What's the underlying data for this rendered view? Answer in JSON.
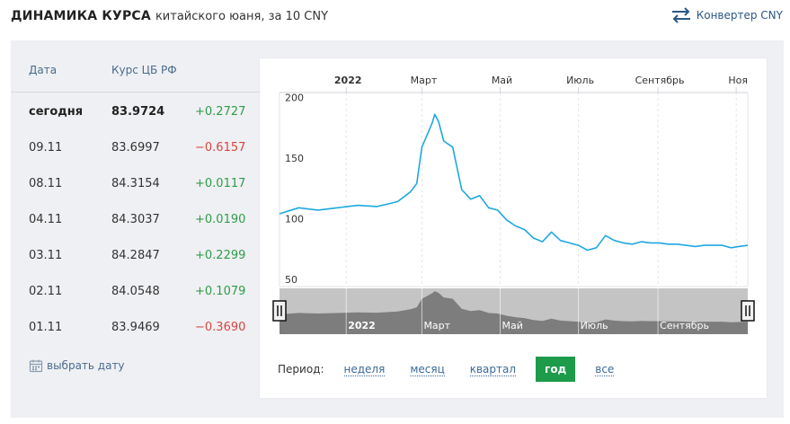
{
  "header": {
    "title": "ДИНАМИКА КУРСА",
    "subtitle": "китайского юаня, за 10 CNY"
  },
  "converter": {
    "label": "Конвертер CNY",
    "icon": "swap-arrows-icon"
  },
  "table": {
    "col_date": "Дата",
    "col_rate": "Курс ЦБ РФ",
    "rows": [
      {
        "date": "сегодня",
        "rate": "83.9724",
        "change": "+0.2727",
        "trend": "pos",
        "bold": true
      },
      {
        "date": "09.11",
        "rate": "83.6997",
        "change": "−0.6157",
        "trend": "neg",
        "bold": false
      },
      {
        "date": "08.11",
        "rate": "84.3154",
        "change": "+0.0117",
        "trend": "pos",
        "bold": false
      },
      {
        "date": "04.11",
        "rate": "84.3037",
        "change": "+0.0190",
        "trend": "pos",
        "bold": false
      },
      {
        "date": "03.11",
        "rate": "84.2847",
        "change": "+0.2299",
        "trend": "pos",
        "bold": false
      },
      {
        "date": "02.11",
        "rate": "84.0548",
        "change": "+0.1079",
        "trend": "pos",
        "bold": false
      },
      {
        "date": "01.11",
        "rate": "83.9469",
        "change": "−0.3690",
        "trend": "neg",
        "bold": false
      }
    ],
    "pick_date_label": "выбрать дату"
  },
  "period": {
    "label": "Период:",
    "options": [
      {
        "label": "неделя",
        "active": false
      },
      {
        "label": "месяц",
        "active": false
      },
      {
        "label": "квартал",
        "active": false
      },
      {
        "label": "год",
        "active": true
      },
      {
        "label": "все",
        "active": false
      }
    ]
  },
  "colors": {
    "line": "#1ea8e0",
    "positive": "#2e9c4b",
    "negative": "#d64541",
    "accent": "#1d9a4a"
  },
  "chart_data": {
    "type": "line",
    "top_labels": [
      "2022",
      "Март",
      "Май",
      "Июль",
      "Сентябрь",
      "Ноя"
    ],
    "navigator_labels": [
      "2022",
      "Март",
      "Май",
      "Июль",
      "Сентябрь"
    ],
    "ylim": [
      50,
      210
    ],
    "yticks": [
      50,
      100,
      150,
      200
    ],
    "grid": true,
    "series": [
      {
        "x": [
          "2021-11-10",
          "2021-11-25",
          "2021-12-10",
          "2021-12-25",
          "2022-01-10",
          "2022-01-25",
          "2022-02-10",
          "2022-02-20",
          "2022-02-25",
          "2022-03-01",
          "2022-03-05",
          "2022-03-09",
          "2022-03-11",
          "2022-03-14",
          "2022-03-18",
          "2022-03-25",
          "2022-04-01",
          "2022-04-08",
          "2022-04-15",
          "2022-04-22",
          "2022-04-29",
          "2022-05-06",
          "2022-05-13",
          "2022-05-20",
          "2022-05-27",
          "2022-06-03",
          "2022-06-10",
          "2022-06-17",
          "2022-06-24",
          "2022-07-01",
          "2022-07-08",
          "2022-07-15",
          "2022-07-22",
          "2022-07-29",
          "2022-08-05",
          "2022-08-12",
          "2022-08-19",
          "2022-08-26",
          "2022-09-02",
          "2022-09-09",
          "2022-09-16",
          "2022-09-23",
          "2022-09-30",
          "2022-10-07",
          "2022-10-14",
          "2022-10-21",
          "2022-10-28",
          "2022-11-03",
          "2022-11-10"
        ],
        "y": [
          110,
          115,
          113,
          115,
          117,
          116,
          120,
          128,
          135,
          165,
          175,
          185,
          192,
          186,
          170,
          165,
          130,
          122,
          125,
          115,
          113,
          105,
          100,
          97,
          90,
          87,
          95,
          88,
          86,
          84,
          80,
          82,
          92,
          88,
          86,
          85,
          87,
          86,
          86,
          85,
          85,
          84,
          83,
          84,
          84,
          84,
          82,
          83,
          84
        ]
      }
    ]
  }
}
